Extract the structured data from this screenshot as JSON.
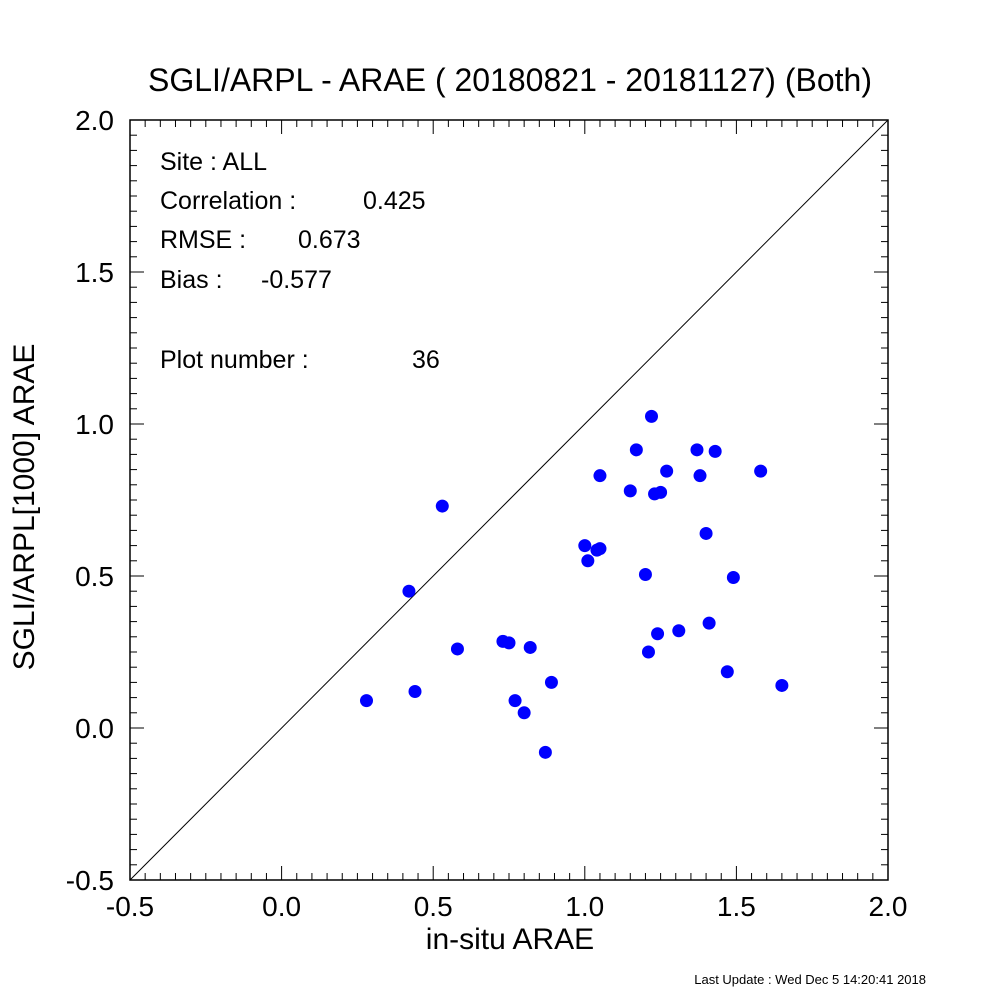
{
  "chart_data": {
    "type": "scatter",
    "title": "SGLI/ARPL - ARAE ( 20180821 - 20181127) (Both)",
    "xlabel": "in-situ ARAE",
    "ylabel": "SGLI/ARPL[1000]    ARAE",
    "xlim": [
      -0.5,
      2.0
    ],
    "ylim": [
      -0.5,
      2.0
    ],
    "xticks": [
      "-0.5",
      "0.0",
      "0.5",
      "1.0",
      "1.5",
      "2.0"
    ],
    "yticks": [
      "-0.5",
      "0.0",
      "0.5",
      "1.0",
      "1.5",
      "2.0"
    ],
    "reference_line": "1:1",
    "point_color": "#0000ff",
    "stats": {
      "site_label": "Site : ALL",
      "correlation_label": "Correlation :",
      "correlation_value": "0.425",
      "rmse_label": "RMSE :",
      "rmse_value": "0.673",
      "bias_label": "Bias :",
      "bias_value": "-0.577",
      "plot_number_label": "Plot number :",
      "plot_number_value": "36"
    },
    "points": [
      {
        "x": 0.28,
        "y": 0.09
      },
      {
        "x": 0.42,
        "y": 0.45
      },
      {
        "x": 0.44,
        "y": 0.12
      },
      {
        "x": 0.53,
        "y": 0.73
      },
      {
        "x": 0.58,
        "y": 0.26
      },
      {
        "x": 0.73,
        "y": 0.285
      },
      {
        "x": 0.75,
        "y": 0.28
      },
      {
        "x": 0.77,
        "y": 0.09
      },
      {
        "x": 0.8,
        "y": 0.05
      },
      {
        "x": 0.82,
        "y": 0.265
      },
      {
        "x": 0.87,
        "y": -0.08
      },
      {
        "x": 0.89,
        "y": 0.15
      },
      {
        "x": 1.0,
        "y": 0.6
      },
      {
        "x": 1.01,
        "y": 0.55
      },
      {
        "x": 1.04,
        "y": 0.585
      },
      {
        "x": 1.05,
        "y": 0.59
      },
      {
        "x": 1.05,
        "y": 0.83
      },
      {
        "x": 1.15,
        "y": 0.78
      },
      {
        "x": 1.17,
        "y": 0.915
      },
      {
        "x": 1.2,
        "y": 0.505
      },
      {
        "x": 1.21,
        "y": 0.25
      },
      {
        "x": 1.22,
        "y": 1.025
      },
      {
        "x": 1.23,
        "y": 0.77
      },
      {
        "x": 1.24,
        "y": 0.31
      },
      {
        "x": 1.25,
        "y": 0.775
      },
      {
        "x": 1.27,
        "y": 0.845
      },
      {
        "x": 1.31,
        "y": 0.32
      },
      {
        "x": 1.37,
        "y": 0.915
      },
      {
        "x": 1.38,
        "y": 0.83
      },
      {
        "x": 1.4,
        "y": 0.64
      },
      {
        "x": 1.41,
        "y": 0.345
      },
      {
        "x": 1.43,
        "y": 0.91
      },
      {
        "x": 1.47,
        "y": 0.185
      },
      {
        "x": 1.49,
        "y": 0.495
      },
      {
        "x": 1.58,
        "y": 0.845
      },
      {
        "x": 1.65,
        "y": 0.14
      }
    ]
  },
  "footer": {
    "last_update": "Last Update : Wed Dec  5 14:20:41 2018"
  }
}
